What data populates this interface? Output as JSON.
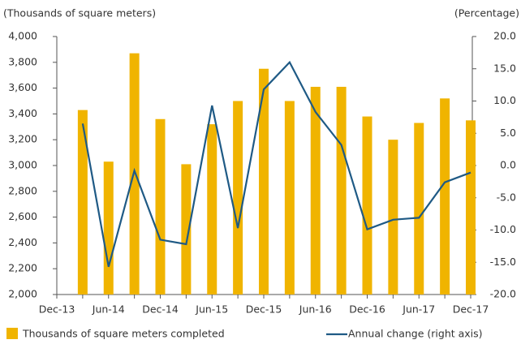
{
  "chart_data": {
    "type": "bar-line",
    "y_axis_label": "(Thousands of square meters)",
    "y2_axis_label": "(Percentage)",
    "categories": [
      "Dec-13",
      null,
      "Jun-14",
      null,
      "Dec-14",
      null,
      "Jun-15",
      null,
      "Dec-15",
      null,
      "Jun-16",
      null,
      "Dec-16",
      null,
      "Jun-17",
      null,
      "Dec-17"
    ],
    "series": [
      {
        "name": "Thousands of square meters completed",
        "type": "bar",
        "color": "#f0b400",
        "values": [
          null,
          3430,
          3030,
          3870,
          3360,
          3010,
          3320,
          3500,
          3750,
          3500,
          3610,
          3610,
          3380,
          3200,
          3330,
          3520,
          3350
        ]
      },
      {
        "name": "Annual change (right axis)",
        "type": "line",
        "axis": "y2",
        "color": "#1f5a85",
        "values": [
          null,
          6.5,
          -15.7,
          -0.8,
          -11.5,
          -12.2,
          9.3,
          -9.7,
          11.8,
          16.0,
          8.3,
          3.2,
          -9.9,
          -8.4,
          -8.1,
          -2.6,
          -1.1
        ]
      }
    ],
    "ylim": [
      2000,
      4000
    ],
    "yticks": [
      {
        "value": 2000,
        "label": "2,000"
      },
      {
        "value": 2200,
        "label": "2,200"
      },
      {
        "value": 2400,
        "label": "2,400"
      },
      {
        "value": 2600,
        "label": "2,600"
      },
      {
        "value": 2800,
        "label": "2,800"
      },
      {
        "value": 3000,
        "label": "3,000"
      },
      {
        "value": 3200,
        "label": "3,200"
      },
      {
        "value": 3400,
        "label": "3,400"
      },
      {
        "value": 3600,
        "label": "3,600"
      },
      {
        "value": 3800,
        "label": "3,800"
      },
      {
        "value": 4000,
        "label": "4,000"
      }
    ],
    "y2lim": [
      -20,
      20
    ],
    "y2ticks": [
      {
        "value": -20,
        "label": "-20.0"
      },
      {
        "value": -15,
        "label": "-15.0"
      },
      {
        "value": -10,
        "label": "-10.0"
      },
      {
        "value": -5,
        "label": "-5.0"
      },
      {
        "value": 0,
        "label": "0.0"
      },
      {
        "value": 5,
        "label": "5.0"
      },
      {
        "value": 10,
        "label": "10.0"
      },
      {
        "value": 15,
        "label": "15.0"
      },
      {
        "value": 20,
        "label": "20.0"
      }
    ],
    "grid": false,
    "legend": "bottom"
  }
}
